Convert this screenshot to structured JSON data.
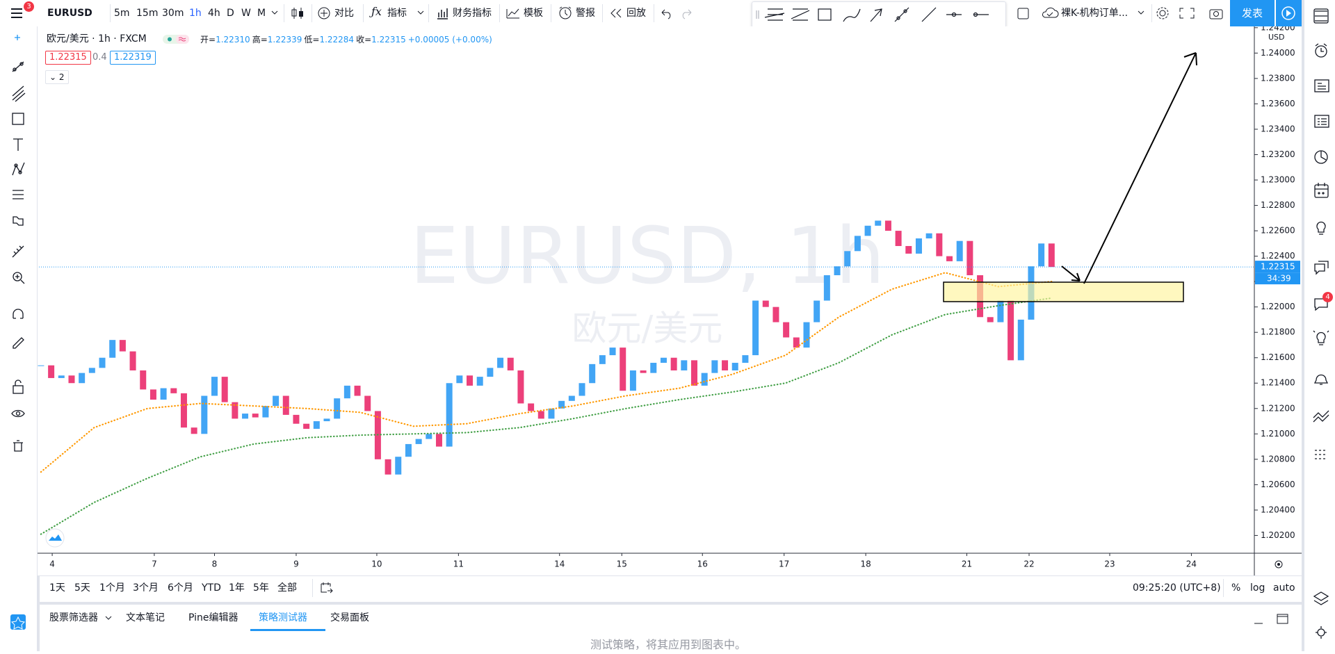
{
  "toolbar": {
    "symbol": "EURUSD",
    "menu_badge": "3",
    "intervals": [
      "5m",
      "15m",
      "30m",
      "1h",
      "4h",
      "D",
      "W",
      "M"
    ],
    "compare": "对比",
    "indicators": "指标",
    "financials": "财务指标",
    "templates": "模板",
    "alert": "警报",
    "replay": "回放",
    "layout": "裸K-机构订单...",
    "publish": "发表"
  },
  "legend": {
    "title": "欧元/美元 · 1h · FXCM",
    "ohlc": [
      [
        "开=",
        "1.22310"
      ],
      [
        "高=",
        "1.22339"
      ],
      [
        "低=",
        "1.22284"
      ],
      [
        "收=",
        "1.22315"
      ]
    ],
    "change": "+0.00005 (+0.00%)",
    "bid": "1.22315",
    "spread": "0.4",
    "ask": "1.22319",
    "collapsed": "2"
  },
  "chart_data": {
    "type": "candlestick",
    "watermark": "EURUSD, 1h",
    "watermark_sub": "欧元/美元",
    "currency": "USD",
    "up_color": "#42a5f5",
    "down_color": "#ec407a",
    "close": [
      1.2154,
      1.2144,
      1.2146,
      1.214,
      1.2148,
      1.2152,
      1.216,
      1.2174,
      1.2165,
      1.215,
      1.2135,
      1.2127,
      1.2136,
      1.2132,
      1.2105,
      1.21,
      1.213,
      1.2145,
      1.2125,
      1.2112,
      1.2116,
      1.2113,
      1.2122,
      1.213,
      1.2115,
      1.2108,
      1.2104,
      1.211,
      1.2112,
      1.2128,
      1.2138,
      1.213,
      1.2118,
      1.208,
      1.2068,
      1.2082,
      1.2092,
      1.2096,
      1.21,
      1.209,
      1.214,
      1.2146,
      1.2138,
      1.2145,
      1.2152,
      1.216,
      1.215,
      1.2124,
      1.2118,
      1.2112,
      1.212,
      1.2126,
      1.213,
      1.214,
      1.2155,
      1.2162,
      1.2168,
      1.2134,
      1.215,
      1.2148,
      1.2156,
      1.216,
      1.215,
      1.2158,
      1.2138,
      1.2148,
      1.2158,
      1.215,
      1.2156,
      1.2162,
      1.2205,
      1.22,
      1.2188,
      1.2176,
      1.2168,
      1.2188,
      1.2205,
      1.2225,
      1.2232,
      1.2244,
      1.2256,
      1.2264,
      1.2268,
      1.226,
      1.2248,
      1.2242,
      1.2254,
      1.2258,
      1.224,
      1.2236,
      1.2252,
      1.2225,
      1.2192,
      1.2188,
      1.2205,
      1.2158,
      1.219,
      1.2232,
      1.225,
      1.22315
    ],
    "overlays": [
      {
        "color": "#ff9800",
        "values": [
          1.207,
          1.2105,
          1.212,
          1.2124,
          1.2122,
          1.212,
          1.2117,
          1.2106,
          1.2108,
          1.2116,
          1.2122,
          1.213,
          1.2136,
          1.2147,
          1.2162,
          1.2192,
          1.2214,
          1.2227,
          1.2216,
          1.222
        ]
      },
      {
        "color": "#43a047",
        "values": [
          1.2021,
          1.2046,
          1.2065,
          1.2082,
          1.2092,
          1.2097,
          1.2099,
          1.21,
          1.2101,
          1.2105,
          1.2112,
          1.212,
          1.2127,
          1.2133,
          1.214,
          1.2156,
          1.2178,
          1.2194,
          1.2201,
          1.2207
        ]
      }
    ],
    "last_price": 1.22315,
    "countdown": "34:39",
    "ylim": [
      1.2006,
      1.2421
    ],
    "yticks": [
      {
        "value": 1.202,
        "label": "1.20200"
      },
      {
        "value": 1.204,
        "label": "1.20400"
      },
      {
        "value": 1.206,
        "label": "1.20600"
      },
      {
        "value": 1.208,
        "label": "1.20800"
      },
      {
        "value": 1.21,
        "label": "1.21000"
      },
      {
        "value": 1.212,
        "label": "1.21200"
      },
      {
        "value": 1.214,
        "label": "1.21400"
      },
      {
        "value": 1.216,
        "label": "1.21600"
      },
      {
        "value": 1.218,
        "label": "1.21800"
      },
      {
        "value": 1.22,
        "label": "1.22000"
      },
      {
        "value": 1.222,
        "label": "1.22200"
      },
      {
        "value": 1.224,
        "label": "1.22400"
      },
      {
        "value": 1.226,
        "label": "1.22600"
      },
      {
        "value": 1.228,
        "label": "1.22800"
      },
      {
        "value": 1.23,
        "label": "1.23000"
      },
      {
        "value": 1.232,
        "label": "1.23200"
      },
      {
        "value": 1.234,
        "label": "1.23400"
      },
      {
        "value": 1.236,
        "label": "1.23600"
      },
      {
        "value": 1.238,
        "label": "1.23800"
      },
      {
        "value": 1.24,
        "label": "1.24000"
      },
      {
        "value": 1.242,
        "label": "1.24200"
      }
    ],
    "xlim": [
      -0.2,
      118.8
    ],
    "xticks": [
      {
        "value": 1.1,
        "label": "4"
      },
      {
        "value": 11.1,
        "label": "7"
      },
      {
        "value": 17,
        "label": "8"
      },
      {
        "value": 25,
        "label": "9"
      },
      {
        "value": 32.9,
        "label": "10"
      },
      {
        "value": 40.9,
        "label": "11"
      },
      {
        "value": 50.8,
        "label": "14"
      },
      {
        "value": 56.9,
        "label": "15"
      },
      {
        "value": 64.8,
        "label": "16"
      },
      {
        "value": 72.8,
        "label": "17"
      },
      {
        "value": 80.8,
        "label": "18"
      },
      {
        "value": 90.7,
        "label": "21"
      },
      {
        "value": 96.8,
        "label": "22"
      },
      {
        "value": 104.7,
        "label": "23"
      },
      {
        "value": 112.7,
        "label": "24"
      }
    ],
    "grid": false
  },
  "range_bar": {
    "ranges": [
      "1天",
      "5天",
      "1个月",
      "3个月",
      "6个月",
      "YTD",
      "1年",
      "5年",
      "全部"
    ],
    "clock": "09:25:20 (UTC+8)",
    "percent": "%",
    "log": "log",
    "auto": "auto"
  },
  "bottom_panel": {
    "tabs": [
      "股票筛选器",
      "文本笔记",
      "Pine编辑器",
      "策略测试器",
      "交易面板"
    ],
    "message": "测试策略，将其应用到图表中。"
  },
  "sidebar": {
    "chat_badge": "4"
  }
}
